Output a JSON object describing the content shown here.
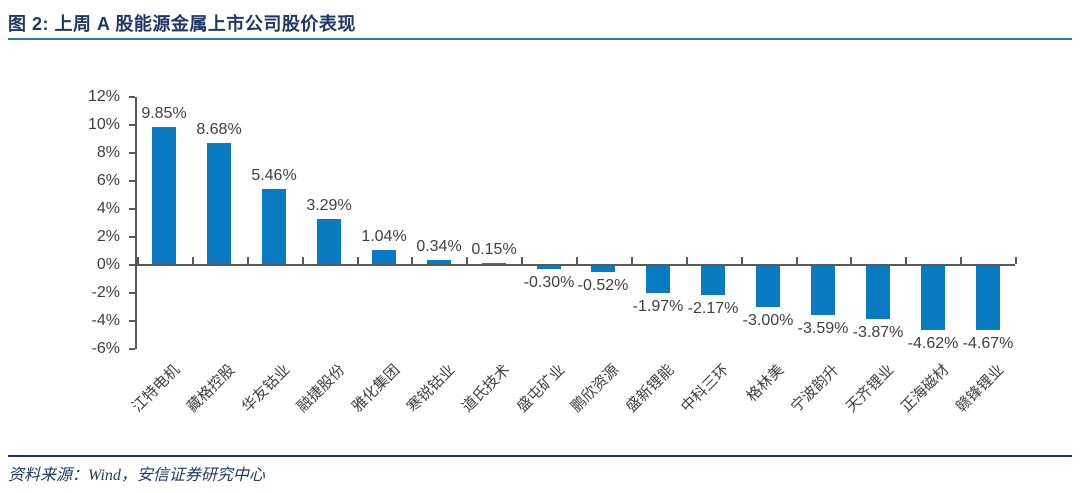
{
  "header": {
    "title": "图 2: 上周 A 股能源金属上市公司股价表现"
  },
  "footer": {
    "source": "资料来源：Wind，安信证券研究中心"
  },
  "colors": {
    "bar": "#0A7BC2",
    "title_text": "#1F3864",
    "header_rule": "#2E74B5",
    "footer_rule": "#1F3864",
    "axis": "#595959",
    "label_text": "#3F3F3F"
  },
  "chart_data": {
    "type": "bar",
    "title": "",
    "xlabel": "",
    "ylabel": "",
    "categories": [
      "江特电机",
      "藏格控股",
      "华友钴业",
      "融捷股份",
      "雅化集团",
      "寒锐钴业",
      "道氏技术",
      "盛屯矿业",
      "鹏欣资源",
      "盛新锂能",
      "中科三环",
      "格林美",
      "宁波韵升",
      "天齐锂业",
      "正海磁材",
      "赣锋锂业"
    ],
    "values": [
      9.85,
      8.68,
      5.46,
      3.29,
      1.04,
      0.34,
      0.15,
      -0.3,
      -0.52,
      -1.97,
      -2.17,
      -3.0,
      -3.59,
      -3.87,
      -4.62,
      -4.67
    ],
    "value_labels": [
      "9.85%",
      "8.68%",
      "5.46%",
      "3.29%",
      "1.04%",
      "0.34%",
      "0.15%",
      "-0.30%",
      "-0.52%",
      "-1.97%",
      "-2.17%",
      "-3.00%",
      "-3.59%",
      "-3.87%",
      "-4.62%",
      "-4.67%"
    ],
    "ylim": [
      -6,
      12
    ],
    "ytick_step": 2,
    "ytick_values": [
      12,
      10,
      8,
      6,
      4,
      2,
      0,
      -2,
      -4,
      -6
    ],
    "ytick_labels": [
      "12%",
      "10%",
      "8%",
      "6%",
      "4%",
      "2%",
      "0%",
      "-2%",
      "-4%",
      "-6%"
    ],
    "grid": false,
    "legend": "none",
    "bar_color": "#0A7BC2"
  }
}
